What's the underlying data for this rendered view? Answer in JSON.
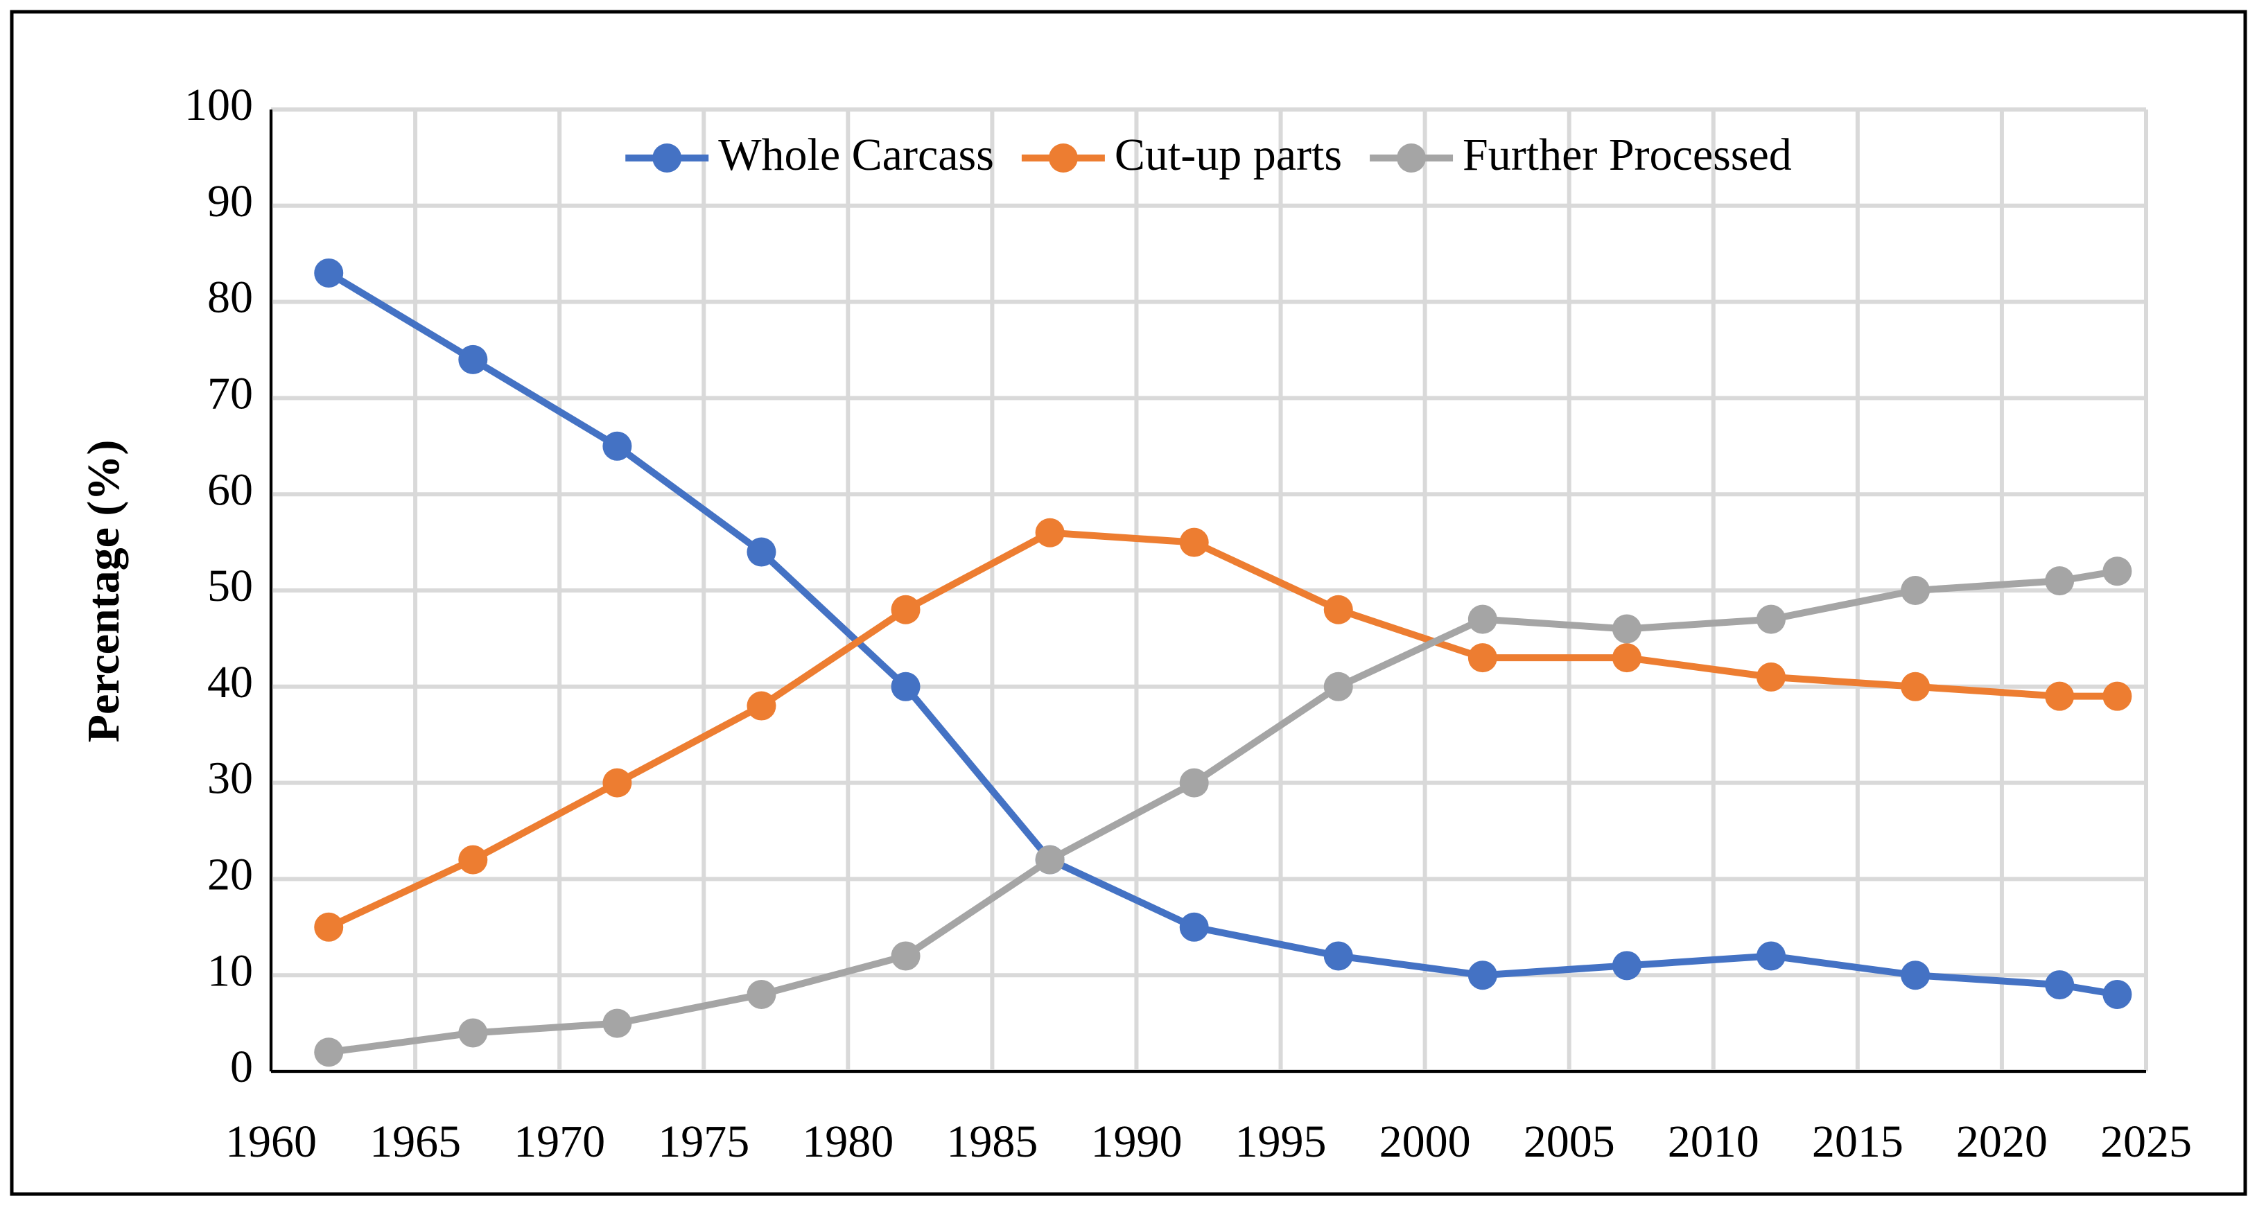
{
  "chart_data": {
    "type": "line",
    "y_label": "Percentage (%)",
    "x": [
      1962,
      1967,
      1972,
      1977,
      1982,
      1987,
      1992,
      1997,
      2002,
      2007,
      2012,
      2017,
      2022,
      2024
    ],
    "series": [
      {
        "name": "Whole Carcass",
        "color": "#4472c4",
        "values": [
          83,
          74,
          65,
          54,
          40,
          22,
          15,
          12,
          10,
          11,
          12,
          10,
          9,
          8
        ]
      },
      {
        "name": "Cut-up parts",
        "color": "#ed7d31",
        "values": [
          15,
          22,
          30,
          38,
          48,
          56,
          55,
          48,
          43,
          43,
          41,
          40,
          39,
          39
        ]
      },
      {
        "name": "Further Processed",
        "color": "#a5a5a5",
        "values": [
          2,
          4,
          5,
          8,
          12,
          22,
          30,
          40,
          47,
          46,
          47,
          50,
          51,
          52
        ]
      }
    ],
    "xlim": [
      1960,
      2025
    ],
    "xticks": [
      1960,
      1965,
      1970,
      1975,
      1980,
      1985,
      1990,
      1995,
      2000,
      2005,
      2010,
      2015,
      2020,
      2025
    ],
    "ylim": [
      0,
      100
    ],
    "yticks": [
      0,
      10,
      20,
      30,
      40,
      50,
      60,
      70,
      80,
      90,
      100
    ],
    "grid": true,
    "legend": "top"
  }
}
